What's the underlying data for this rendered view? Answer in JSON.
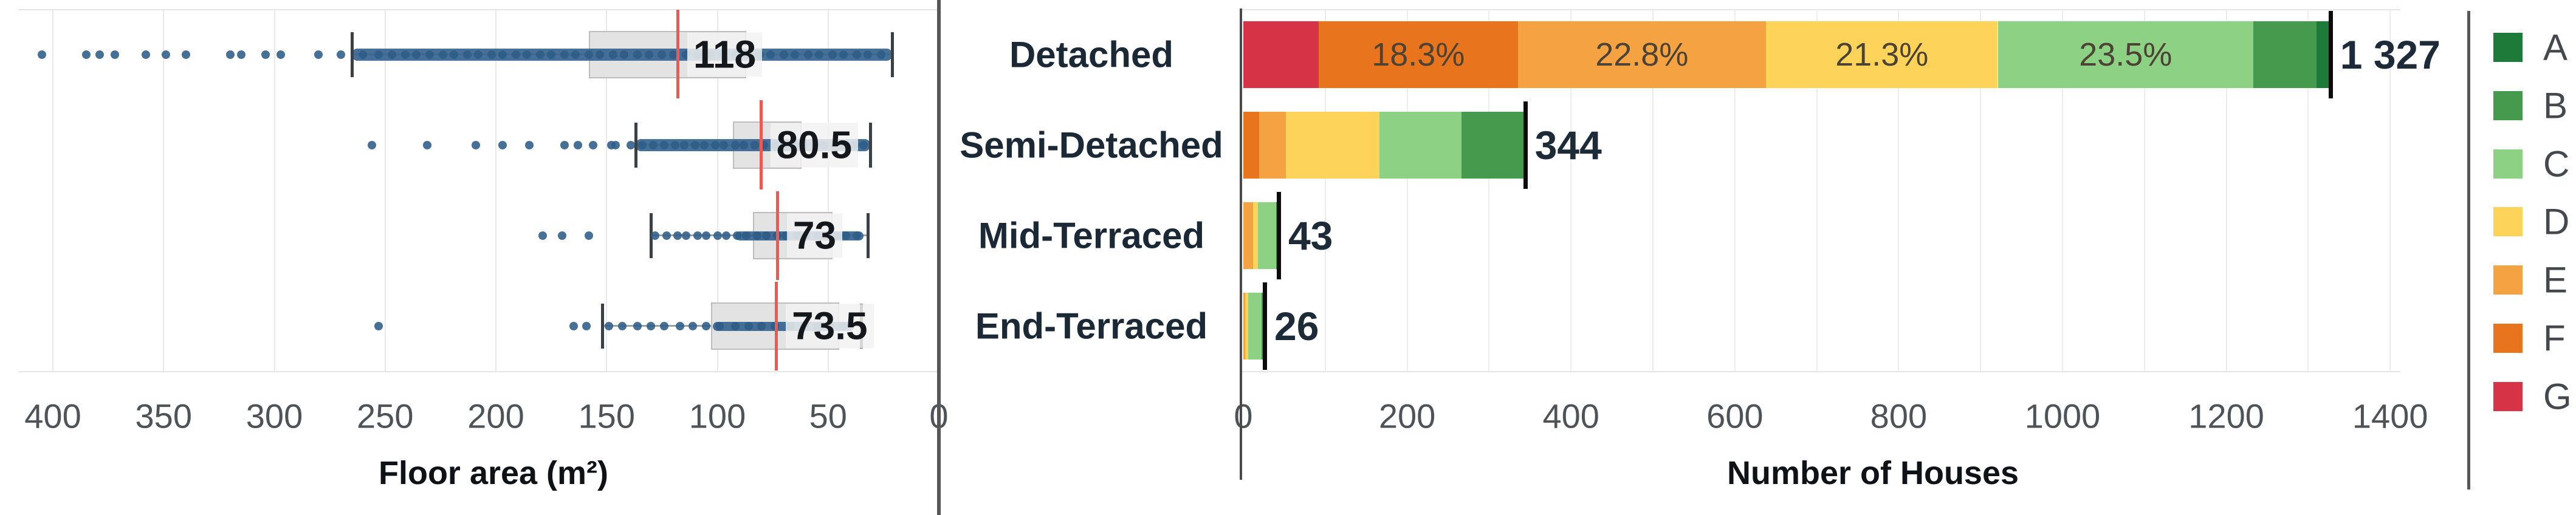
{
  "chart_data": [
    {
      "type": "boxplot",
      "orientation": "horizontal",
      "xlabel": "Floor area (m²)",
      "axis_reversed": true,
      "xticks": [
        400,
        350,
        300,
        250,
        200,
        150,
        100,
        50,
        0
      ],
      "xlim": [
        0,
        415
      ],
      "grid": true,
      "point_color": "#2e5c88",
      "mean_line_color": "#ee5a52",
      "categories": [
        "Detached",
        "Semi-Detached",
        "Mid-Terraced",
        "End-Terraced"
      ],
      "rows": [
        {
          "category": "Detached",
          "mean": 118,
          "mean_label": "118",
          "q1": 87,
          "q3": 158,
          "whisker_low": 21,
          "whisker_high": 265,
          "band": [
            21,
            265
          ],
          "outliers": [
            405,
            385,
            379,
            372,
            358,
            349,
            340,
            320,
            315,
            304,
            297,
            280,
            270
          ],
          "strip_dots": [
            260,
            253,
            247,
            241,
            236,
            230,
            224,
            219,
            213,
            208,
            202,
            197,
            191,
            186,
            180,
            175,
            169,
            164,
            158,
            153,
            147,
            142,
            136,
            131,
            125,
            120,
            114,
            109,
            103,
            98,
            92,
            87,
            81,
            76,
            70,
            65,
            59,
            54,
            48,
            43,
            37,
            32,
            26
          ]
        },
        {
          "category": "Semi-Detached",
          "mean": 80.5,
          "mean_label": "80.5",
          "q1": 62,
          "q3": 93,
          "whisker_low": 31,
          "whisker_high": 137,
          "band": [
            31,
            137
          ],
          "outliers": [
            256,
            231,
            209,
            197,
            185,
            169,
            163,
            156,
            148,
            146,
            139
          ],
          "strip_dots": [
            134,
            129,
            124,
            119,
            115,
            110,
            106,
            101,
            97,
            92,
            88,
            83,
            79,
            74,
            70,
            65,
            61,
            56,
            52,
            47,
            43,
            38,
            34
          ]
        },
        {
          "category": "Mid-Terraced",
          "mean": 73,
          "mean_label": "73",
          "q1": 48,
          "q3": 84,
          "whisker_low": 32,
          "whisker_high": 130,
          "band": [
            34,
            92
          ],
          "outliers": [
            179,
            170,
            158
          ],
          "strip_dots": [
            128,
            123,
            118,
            114,
            109,
            105,
            100,
            96,
            91,
            87,
            82,
            78,
            73,
            69,
            64,
            60,
            55,
            51,
            46,
            42,
            37
          ]
        },
        {
          "category": "End-Terraced",
          "mean": 73.5,
          "mean_label": "73.5",
          "q1": 45,
          "q3": 103,
          "whisker_low": 35,
          "whisker_high": 152,
          "band": [
            38,
            102
          ],
          "outliers": [
            253,
            165,
            159
          ],
          "strip_dots": [
            149,
            143,
            136,
            130,
            124,
            117,
            111,
            105,
            99,
            92,
            86,
            80,
            74,
            67,
            61,
            55,
            49,
            43
          ]
        }
      ]
    },
    {
      "type": "bar",
      "stacked": true,
      "orientation": "horizontal",
      "xlabel": "Number of Houses",
      "xticks": [
        0,
        200,
        400,
        600,
        800,
        1000,
        1200,
        1400
      ],
      "xlim": [
        0,
        1400
      ],
      "grid": true,
      "grades_order": [
        "G",
        "F",
        "E",
        "D",
        "C",
        "B",
        "A"
      ],
      "categories": [
        "Detached",
        "Semi-Detached",
        "Mid-Terraced",
        "End-Terraced"
      ],
      "rows": [
        {
          "category": "Detached",
          "total": 1327,
          "total_label": "1 327",
          "segments": [
            {
              "grade": "G",
              "value": 92
            },
            {
              "grade": "F",
              "value": 243,
              "label": "18.3%"
            },
            {
              "grade": "E",
              "value": 303,
              "label": "22.8%"
            },
            {
              "grade": "D",
              "value": 283,
              "label": "21.3%"
            },
            {
              "grade": "C",
              "value": 312,
              "label": "23.5%"
            },
            {
              "grade": "B",
              "value": 77
            },
            {
              "grade": "A",
              "value": 17
            }
          ]
        },
        {
          "category": "Semi-Detached",
          "total": 344,
          "total_label": "344",
          "segments": [
            {
              "grade": "F",
              "value": 19
            },
            {
              "grade": "E",
              "value": 33
            },
            {
              "grade": "D",
              "value": 114
            },
            {
              "grade": "C",
              "value": 100
            },
            {
              "grade": "B",
              "value": 78
            }
          ]
        },
        {
          "category": "Mid-Terraced",
          "total": 43,
          "total_label": "43",
          "segments": [
            {
              "grade": "E",
              "value": 12
            },
            {
              "grade": "D",
              "value": 6
            },
            {
              "grade": "C",
              "value": 22
            },
            {
              "grade": "B",
              "value": 3
            }
          ]
        },
        {
          "category": "End-Terraced",
          "total": 26,
          "total_label": "26",
          "segments": [
            {
              "grade": "E",
              "value": 2
            },
            {
              "grade": "D",
              "value": 4
            },
            {
              "grade": "C",
              "value": 16
            },
            {
              "grade": "B",
              "value": 4
            }
          ]
        }
      ]
    }
  ],
  "legend": {
    "position": "right",
    "items": [
      {
        "label": "A",
        "color": "#1e7a38"
      },
      {
        "label": "B",
        "color": "#459a4d"
      },
      {
        "label": "C",
        "color": "#8dd185"
      },
      {
        "label": "D",
        "color": "#fdd35a"
      },
      {
        "label": "E",
        "color": "#f5a342"
      },
      {
        "label": "F",
        "color": "#e8751d"
      },
      {
        "label": "G",
        "color": "#d73347"
      }
    ]
  },
  "colors": {
    "point_blue": "#2e5c88",
    "band_blue": "#38658f",
    "mean_red": "#ee5a52",
    "box_fill": "#e3e3e3",
    "box_border": "#bdbdbd",
    "bar_end_line": "#0c0c0c",
    "divider": "#565656"
  }
}
